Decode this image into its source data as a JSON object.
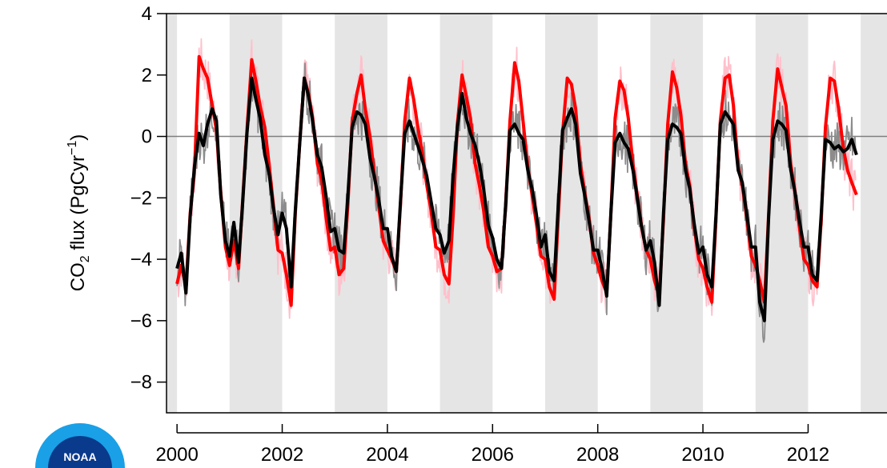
{
  "chart_data": {
    "type": "line",
    "title": "",
    "xlabel": "",
    "ylabel": {
      "prefix": "CO",
      "sub": "2",
      "mid": " flux (PgCyr",
      "sup": "−1",
      "suffix": ")"
    },
    "xlim": [
      1999.8,
      2013.5
    ],
    "ylim": [
      -9,
      4
    ],
    "x_ticks": [
      2000,
      2002,
      2004,
      2006,
      2008,
      2010,
      2012
    ],
    "x_tick_labels": [
      "2000",
      "2002",
      "2004",
      "2006",
      "2008",
      "2010",
      "2012"
    ],
    "y_ticks": [
      4,
      2,
      0,
      -2,
      -4,
      -6,
      -8
    ],
    "y_tick_labels": [
      "4",
      "2",
      "0",
      "−2",
      "−4",
      "−6",
      "−8"
    ],
    "shaded_years": [
      1999,
      2001,
      2003,
      2005,
      2007,
      2009,
      2011,
      2013
    ],
    "zero_line": 0,
    "grid": false,
    "legend": "none",
    "series": [
      {
        "color": "#ff0000",
        "noise_color": "#ffc0cb",
        "x": [
          2000.0,
          2000.08,
          2000.17,
          2000.25,
          2000.33,
          2000.42,
          2000.5,
          2000.58,
          2000.67,
          2000.75,
          2000.83,
          2000.92,
          2001.0,
          2001.08,
          2001.17,
          2001.25,
          2001.33,
          2001.42,
          2001.5,
          2001.58,
          2001.67,
          2001.75,
          2001.83,
          2001.92,
          2002.0,
          2002.08,
          2002.17,
          2002.25,
          2002.33,
          2002.42,
          2002.5,
          2002.58,
          2002.67,
          2002.75,
          2002.83,
          2002.92,
          2003.0,
          2003.08,
          2003.17,
          2003.25,
          2003.33,
          2003.42,
          2003.5,
          2003.58,
          2003.67,
          2003.75,
          2003.83,
          2003.92,
          2004.0,
          2004.08,
          2004.17,
          2004.25,
          2004.33,
          2004.42,
          2004.5,
          2004.58,
          2004.67,
          2004.75,
          2004.83,
          2004.92,
          2005.0,
          2005.08,
          2005.17,
          2005.25,
          2005.33,
          2005.42,
          2005.5,
          2005.58,
          2005.67,
          2005.75,
          2005.83,
          2005.92,
          2006.0,
          2006.08,
          2006.17,
          2006.25,
          2006.33,
          2006.42,
          2006.5,
          2006.58,
          2006.67,
          2006.75,
          2006.83,
          2006.92,
          2007.0,
          2007.08,
          2007.17,
          2007.25,
          2007.33,
          2007.42,
          2007.5,
          2007.58,
          2007.67,
          2007.75,
          2007.83,
          2007.92,
          2008.0,
          2008.08,
          2008.17,
          2008.25,
          2008.33,
          2008.42,
          2008.5,
          2008.58,
          2008.67,
          2008.75,
          2008.83,
          2008.92,
          2009.0,
          2009.08,
          2009.17,
          2009.25,
          2009.33,
          2009.42,
          2009.5,
          2009.58,
          2009.67,
          2009.75,
          2009.83,
          2009.92,
          2010.0,
          2010.08,
          2010.17,
          2010.25,
          2010.33,
          2010.42,
          2010.5,
          2010.58,
          2010.67,
          2010.75,
          2010.83,
          2010.92,
          2011.0,
          2011.08,
          2011.17,
          2011.25,
          2011.33,
          2011.42,
          2011.5,
          2011.58,
          2011.67,
          2011.75,
          2011.83,
          2011.92,
          2012.0,
          2012.08,
          2012.17,
          2012.25,
          2012.33,
          2012.42,
          2012.5,
          2012.58,
          2012.67,
          2012.75,
          2012.83,
          2012.92
        ],
        "y": [
          -4.8,
          -4.2,
          -4.9,
          -2.5,
          -1.2,
          2.6,
          2.2,
          1.9,
          1.0,
          0.2,
          -1.8,
          -3.6,
          -4.2,
          -3.4,
          -4.3,
          -2.0,
          0.2,
          2.5,
          1.8,
          1.0,
          0.3,
          -0.9,
          -2.2,
          -3.7,
          -3.8,
          -4.5,
          -5.5,
          -2.5,
          -0.3,
          1.9,
          1.4,
          0.6,
          -0.9,
          -1.4,
          -2.6,
          -3.7,
          -3.6,
          -4.5,
          -4.3,
          -2.2,
          0.5,
          1.4,
          2.0,
          0.9,
          0.0,
          -1.2,
          -2.2,
          -3.4,
          -3.7,
          -4.0,
          -4.4,
          -2.2,
          0.5,
          1.9,
          1.2,
          0.3,
          -0.6,
          -1.6,
          -2.4,
          -3.6,
          -3.7,
          -4.5,
          -4.8,
          -2.6,
          0.4,
          2.0,
          1.3,
          0.6,
          -0.9,
          -1.6,
          -2.4,
          -3.6,
          -3.9,
          -4.4,
          -4.3,
          -2.2,
          0.5,
          2.4,
          1.8,
          0.5,
          -1.0,
          -1.9,
          -2.8,
          -3.9,
          -4.0,
          -4.9,
          -5.3,
          -2.6,
          0.1,
          1.9,
          1.7,
          0.9,
          -0.9,
          -1.8,
          -2.6,
          -3.8,
          -4.2,
          -4.7,
          -5.1,
          -2.5,
          0.6,
          1.8,
          1.5,
          0.6,
          -0.9,
          -1.9,
          -2.9,
          -3.7,
          -4.0,
          -4.7,
          -5.2,
          -2.7,
          0.4,
          2.1,
          1.6,
          0.7,
          -0.9,
          -1.6,
          -2.9,
          -4.0,
          -4.3,
          -4.9,
          -5.4,
          -2.6,
          0.5,
          1.9,
          2.0,
          1.0,
          -1.0,
          -1.6,
          -2.6,
          -3.9,
          -4.2,
          -4.7,
          -5.4,
          -2.5,
          0.5,
          2.2,
          1.6,
          1.0,
          -0.9,
          -1.8,
          -2.9,
          -4.0,
          -4.2,
          -4.7,
          -4.9,
          -2.7,
          0.3,
          1.9,
          1.8,
          0.9,
          -0.4,
          -1.1,
          -1.5,
          -1.9
        ]
      },
      {
        "color": "#000000",
        "noise_color": "#8c8c8c",
        "x": [
          2000.0,
          2000.08,
          2000.17,
          2000.25,
          2000.33,
          2000.42,
          2000.5,
          2000.58,
          2000.67,
          2000.75,
          2000.83,
          2000.92,
          2001.0,
          2001.08,
          2001.17,
          2001.25,
          2001.33,
          2001.42,
          2001.5,
          2001.58,
          2001.67,
          2001.75,
          2001.83,
          2001.92,
          2002.0,
          2002.08,
          2002.17,
          2002.25,
          2002.33,
          2002.42,
          2002.5,
          2002.58,
          2002.67,
          2002.75,
          2002.83,
          2002.92,
          2003.0,
          2003.08,
          2003.17,
          2003.25,
          2003.33,
          2003.42,
          2003.5,
          2003.58,
          2003.67,
          2003.75,
          2003.83,
          2003.92,
          2004.0,
          2004.08,
          2004.17,
          2004.25,
          2004.33,
          2004.42,
          2004.5,
          2004.58,
          2004.67,
          2004.75,
          2004.83,
          2004.92,
          2005.0,
          2005.08,
          2005.17,
          2005.25,
          2005.33,
          2005.42,
          2005.5,
          2005.58,
          2005.67,
          2005.75,
          2005.83,
          2005.92,
          2006.0,
          2006.08,
          2006.17,
          2006.25,
          2006.33,
          2006.42,
          2006.5,
          2006.58,
          2006.67,
          2006.75,
          2006.83,
          2006.92,
          2007.0,
          2007.08,
          2007.17,
          2007.25,
          2007.33,
          2007.42,
          2007.5,
          2007.58,
          2007.67,
          2007.75,
          2007.83,
          2007.92,
          2008.0,
          2008.08,
          2008.17,
          2008.25,
          2008.33,
          2008.42,
          2008.5,
          2008.58,
          2008.67,
          2008.75,
          2008.83,
          2008.92,
          2009.0,
          2009.08,
          2009.17,
          2009.25,
          2009.33,
          2009.42,
          2009.5,
          2009.58,
          2009.67,
          2009.75,
          2009.83,
          2009.92,
          2010.0,
          2010.08,
          2010.17,
          2010.25,
          2010.33,
          2010.42,
          2010.5,
          2010.58,
          2010.67,
          2010.75,
          2010.83,
          2010.92,
          2011.0,
          2011.08,
          2011.17,
          2011.25,
          2011.33,
          2011.42,
          2011.5,
          2011.58,
          2011.67,
          2011.75,
          2011.83,
          2011.92,
          2012.0,
          2012.08,
          2012.17,
          2012.25,
          2012.33,
          2012.42,
          2012.5,
          2012.58,
          2012.67,
          2012.75,
          2012.83,
          2012.92
        ],
        "y": [
          -4.3,
          -3.8,
          -5.1,
          -2.6,
          -1.0,
          0.1,
          -0.3,
          0.4,
          0.9,
          0.5,
          -1.9,
          -3.4,
          -3.9,
          -2.8,
          -4.1,
          -2.1,
          0.1,
          1.9,
          1.2,
          0.6,
          -0.6,
          -1.2,
          -2.3,
          -3.2,
          -2.5,
          -3.0,
          -4.9,
          -2.4,
          -0.3,
          1.9,
          1.3,
          0.5,
          -0.6,
          -1.0,
          -1.9,
          -3.1,
          -3.0,
          -3.7,
          -3.8,
          -1.9,
          0.3,
          0.8,
          0.7,
          0.4,
          -0.7,
          -1.3,
          -2.0,
          -3.0,
          -3.0,
          -3.9,
          -4.4,
          -2.1,
          0.1,
          0.5,
          0.1,
          -0.3,
          -0.8,
          -1.3,
          -2.1,
          -3.0,
          -3.2,
          -3.8,
          -3.4,
          -1.3,
          0.3,
          1.4,
          0.6,
          0.1,
          -0.3,
          -0.9,
          -1.7,
          -2.9,
          -3.3,
          -4.0,
          -4.3,
          -2.2,
          0.2,
          0.4,
          0.1,
          -0.1,
          -1.1,
          -1.7,
          -2.5,
          -3.6,
          -3.2,
          -4.4,
          -4.7,
          -2.2,
          0.2,
          0.6,
          0.9,
          0.4,
          -1.2,
          -1.9,
          -2.7,
          -3.7,
          -3.7,
          -4.3,
          -5.2,
          -2.5,
          -0.2,
          0.1,
          -0.2,
          -0.4,
          -1.1,
          -2.0,
          -2.9,
          -3.7,
          -3.4,
          -4.1,
          -5.5,
          -2.5,
          -0.1,
          0.4,
          0.3,
          0.1,
          -1.1,
          -1.7,
          -2.8,
          -3.8,
          -3.6,
          -4.5,
          -4.9,
          -2.5,
          0.4,
          0.8,
          0.6,
          0.4,
          -1.1,
          -1.5,
          -2.5,
          -3.6,
          -3.6,
          -5.4,
          -6.0,
          -2.6,
          -0.1,
          0.5,
          0.4,
          0.2,
          -1.1,
          -1.8,
          -2.7,
          -3.6,
          -3.6,
          -4.5,
          -4.7,
          -2.5,
          -0.1,
          -0.2,
          -0.4,
          -0.3,
          -0.5,
          -0.4,
          -0.1,
          -0.6
        ]
      }
    ]
  },
  "logo": {
    "text": "NOAA",
    "colors": {
      "dark": "#0a3a8c",
      "light": "#1aa0e6"
    }
  }
}
